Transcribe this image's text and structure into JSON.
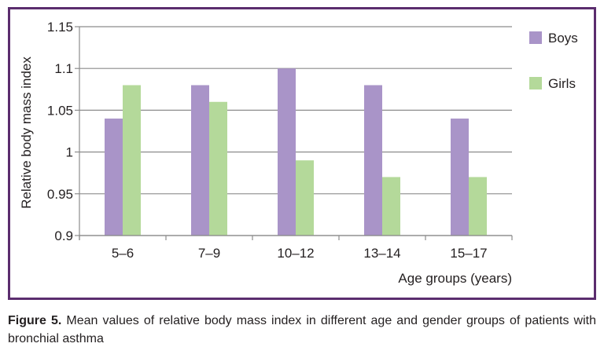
{
  "chart_data": {
    "type": "bar",
    "categories": [
      "5–6",
      "7–9",
      "10–12",
      "13–14",
      "15–17"
    ],
    "series": [
      {
        "name": "Boys",
        "values": [
          1.04,
          1.08,
          1.1,
          1.08,
          1.04
        ],
        "color": "#a994c8"
      },
      {
        "name": "Girls",
        "values": [
          1.08,
          1.06,
          0.99,
          0.97,
          0.97
        ],
        "color": "#b4d99a"
      }
    ],
    "ylim": [
      0.9,
      1.15
    ],
    "yticks": [
      "1.15",
      "1.1",
      "1.05",
      "1",
      "0.95",
      "0.9"
    ],
    "ytick_values": [
      1.15,
      1.1,
      1.05,
      1.0,
      0.95,
      0.9
    ],
    "xlabel": "Age groups (years)",
    "ylabel": "Relative body mass index",
    "grid": true,
    "legend": "right"
  },
  "caption": {
    "label": "Figure 5.",
    "text": " Mean values of relative body mass index in different age and gender groups of patients with bronchial asthma"
  },
  "colors": {
    "frame": "#5b2d6e",
    "grid": "#8c8c8c",
    "axis": "#8c8c8c"
  }
}
